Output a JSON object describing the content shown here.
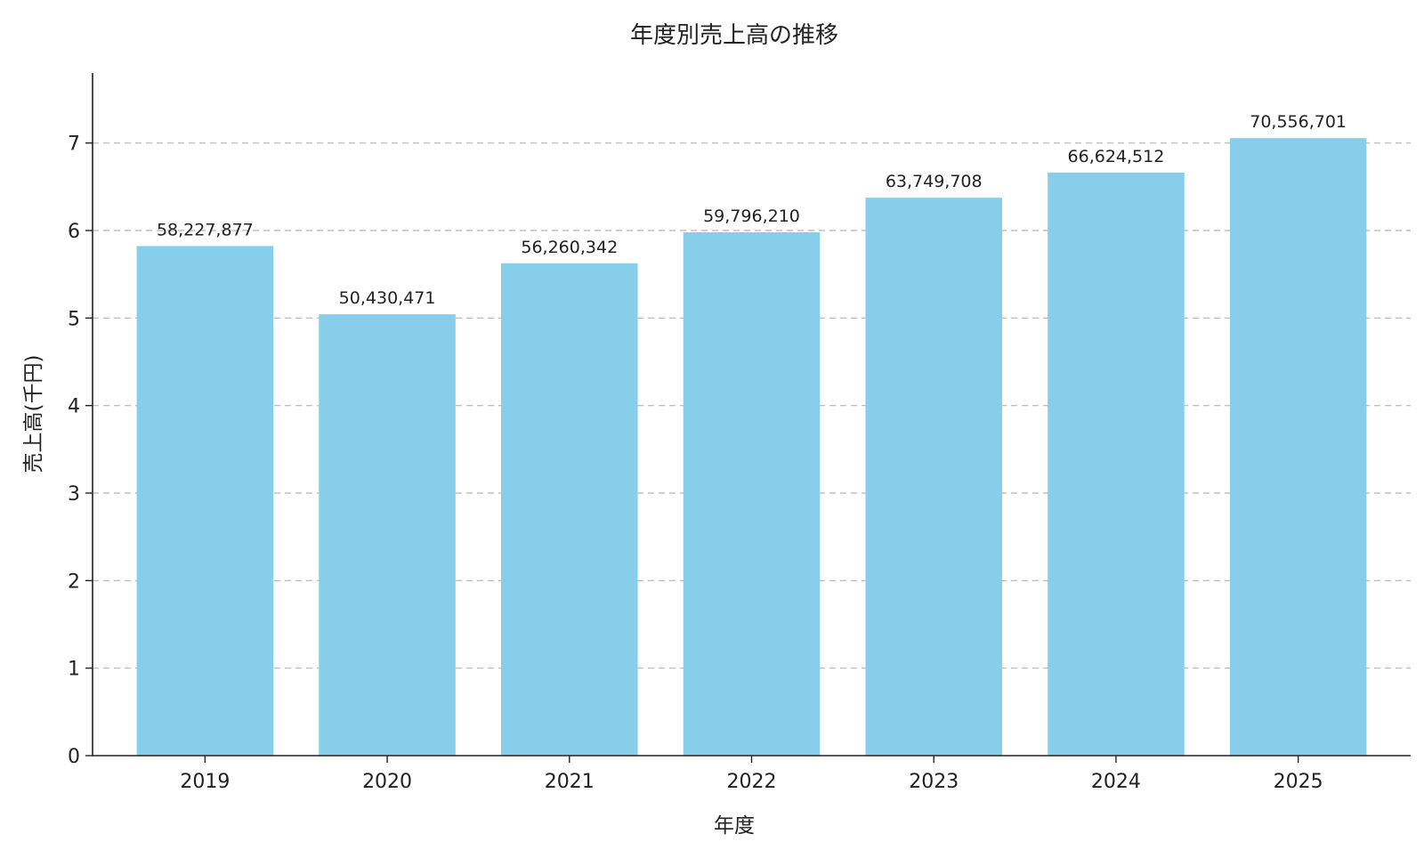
{
  "chart_data": {
    "type": "bar",
    "title": "年度別売上高の推移",
    "xlabel": "年度",
    "ylabel": "売上高(千円)",
    "categories": [
      "2019",
      "2020",
      "2021",
      "2022",
      "2023",
      "2024",
      "2025"
    ],
    "values": [
      58227877,
      50430471,
      56260342,
      59796210,
      63749708,
      66624512,
      70556701
    ],
    "value_labels": [
      "58,227,877",
      "50,430,471",
      "56,260,342",
      "59,796,210",
      "63,749,708",
      "66,624,512",
      "70,556,701"
    ],
    "y_ticks": [
      "0",
      "1",
      "2",
      "3",
      "4",
      "5",
      "6",
      "7"
    ],
    "y_scale": 10000000,
    "ylim": [
      0,
      78000000
    ],
    "grid": "horizontal dashed",
    "bar_color": "#87CEEB",
    "legend": "none"
  }
}
